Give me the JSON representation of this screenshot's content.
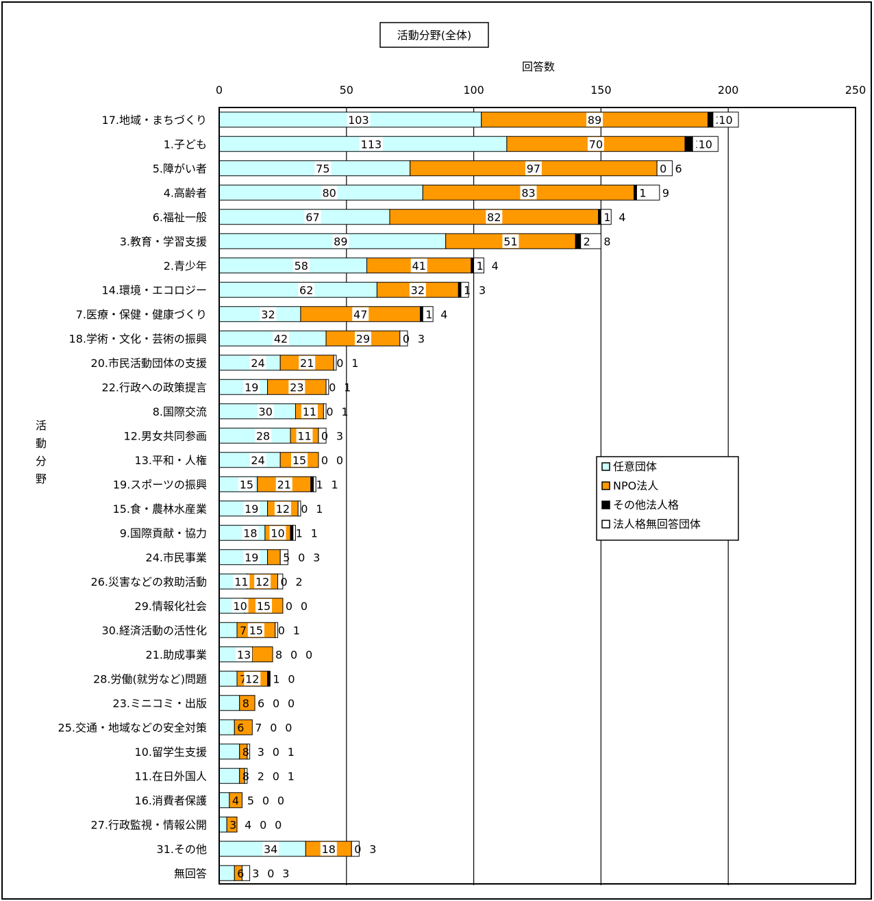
{
  "chart_data": {
    "type": "bar",
    "orientation": "horizontal",
    "stacked": true,
    "title": "活動分野(全体)",
    "xlabel": "回答数",
    "ylabel": "活動分野",
    "xlim": [
      0,
      250
    ],
    "x_ticks": [
      "0",
      "50",
      "100",
      "150",
      "200",
      "250"
    ],
    "grid": "vertical",
    "legend_position": "right-middle",
    "categories": [
      "17.地域・まちづくり",
      "1.子ども",
      "5.障がい者",
      "4.高齢者",
      "6.福祉一般",
      "3.教育・学習支援",
      "2.青少年",
      "14.環境・エコロジー",
      "7.医療・保健・健康づくり",
      "18.学術・文化・芸術の振興",
      "20.市民活動団体の支援",
      "22.行政への政策提言",
      "8.国際交流",
      "12.男女共同参画",
      "13.平和・人権",
      "19.スポーツの振興",
      "15.食・農林水産業",
      "9.国際貢献・協力",
      "24.市民事業",
      "26.災害などの救助活動",
      "29.情報化社会",
      "30.経済活動の活性化",
      "21.助成事業",
      "28.労働(就労など)問題",
      "23.ミニコミ・出版",
      "25.交通・地域などの安全対策",
      "10.留学生支援",
      "11.在日外国人",
      "16.消費者保護",
      "27.行政監視・情報公開",
      "31.その他",
      "無回答"
    ],
    "series": [
      {
        "name": "任意団体",
        "color": "#ccffff",
        "values": [
          103,
          113,
          75,
          80,
          67,
          89,
          58,
          62,
          32,
          42,
          24,
          19,
          30,
          28,
          24,
          15,
          19,
          18,
          19,
          11,
          10,
          7,
          13,
          7,
          8,
          6,
          8,
          8,
          4,
          3,
          34,
          6
        ]
      },
      {
        "name": "NPO法人",
        "color": "#ff9900",
        "values": [
          89,
          70,
          97,
          83,
          82,
          51,
          41,
          32,
          47,
          29,
          21,
          23,
          11,
          11,
          15,
          21,
          12,
          10,
          5,
          12,
          15,
          15,
          8,
          12,
          6,
          7,
          3,
          2,
          5,
          4,
          18,
          3
        ]
      },
      {
        "name": "その他法人格",
        "color": "#000000",
        "values": [
          2,
          3,
          0,
          1,
          1,
          2,
          1,
          1,
          1,
          0,
          0,
          0,
          0,
          0,
          0,
          1,
          0,
          1,
          0,
          0,
          0,
          0,
          0,
          1,
          0,
          0,
          0,
          0,
          0,
          0,
          0,
          0
        ]
      },
      {
        "name": "法人格無回答団体",
        "color": "#ffffff",
        "values": [
          10,
          10,
          6,
          9,
          4,
          8,
          4,
          3,
          4,
          3,
          1,
          1,
          1,
          3,
          0,
          1,
          1,
          1,
          3,
          2,
          0,
          1,
          0,
          0,
          0,
          0,
          1,
          1,
          0,
          0,
          3,
          3
        ]
      }
    ]
  }
}
